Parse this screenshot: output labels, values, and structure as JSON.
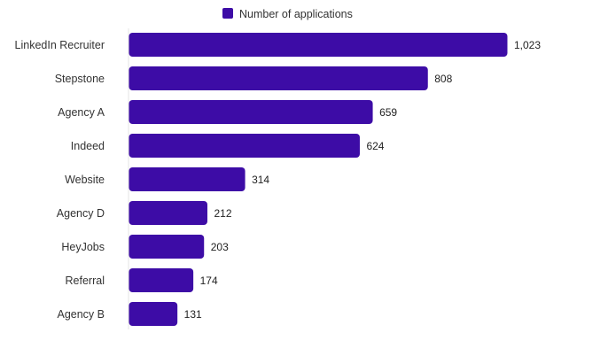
{
  "chart_data": {
    "type": "bar",
    "orientation": "horizontal",
    "categories": [
      "LinkedIn Recruiter",
      "Stepstone",
      "Agency A",
      "Indeed",
      "Website",
      "Agency D",
      "HeyJobs",
      "Referral",
      "Agency B"
    ],
    "series": [
      {
        "name": "Number of applications",
        "values": [
          1023,
          808,
          659,
          624,
          314,
          212,
          203,
          174,
          131
        ],
        "value_labels": [
          "1,023",
          "808",
          "659",
          "624",
          "314",
          "212",
          "203",
          "174",
          "131"
        ],
        "color": "#3d0ca6"
      }
    ],
    "title": "",
    "xlabel": "",
    "ylabel": "",
    "xlim": [
      0,
      1023
    ],
    "grid": false,
    "legend": "top-center"
  }
}
